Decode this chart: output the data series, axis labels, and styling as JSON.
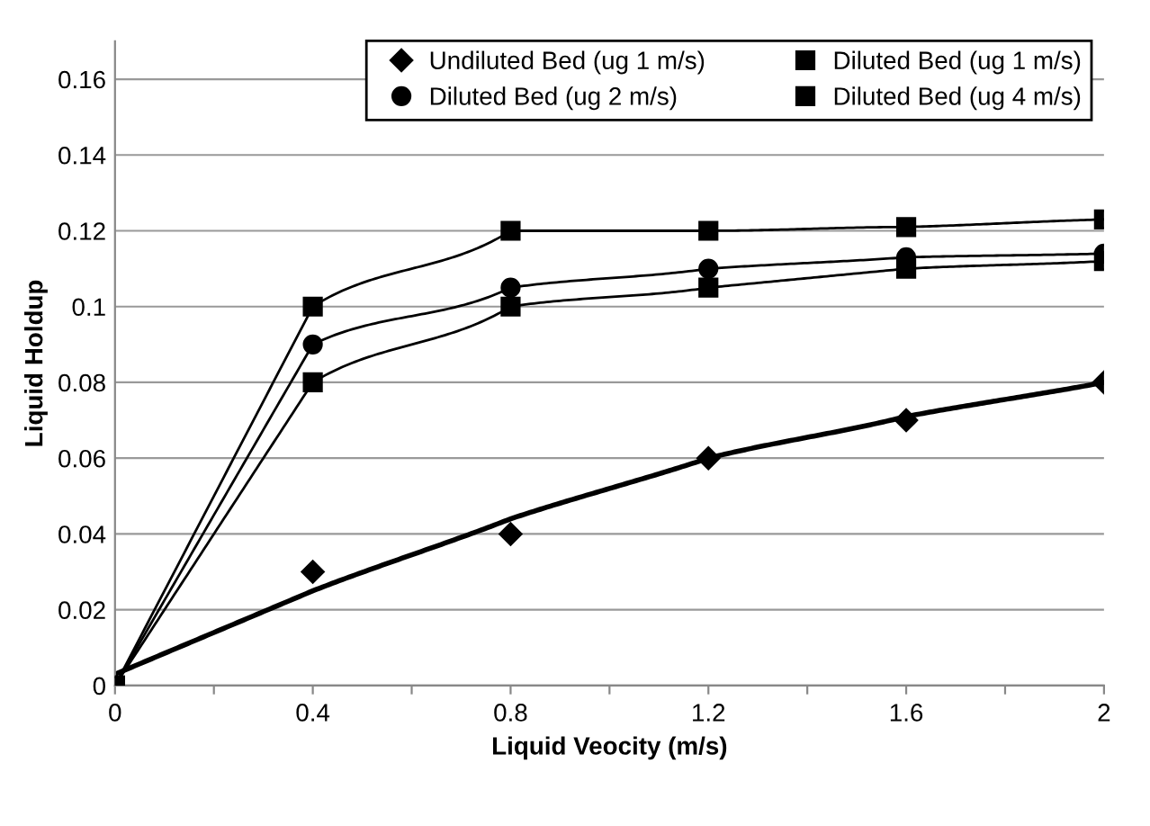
{
  "chart_data": {
    "type": "line",
    "xlabel": "Liquid Veocity (m/s)",
    "ylabel": "Liquid Holdup",
    "x": [
      0,
      0.4,
      0.8,
      1.2,
      1.6,
      2
    ],
    "series": [
      {
        "name": "Undiluted Bed (ug 1 m/s)",
        "type": "scatter",
        "marker": "diamond",
        "color": "#000000",
        "values": [
          null,
          0.03,
          0.04,
          0.06,
          0.07,
          0.08
        ]
      },
      {
        "name": "Diluted Bed (ug 1 m/s)",
        "marker": "square",
        "color": "#000000",
        "values": [
          0,
          0.08,
          0.1,
          0.105,
          0.11,
          0.112
        ]
      },
      {
        "name": "Diluted Bed (ug 2 m/s)",
        "marker": "circle",
        "color": "#000000",
        "values": [
          0,
          0.09,
          0.105,
          0.11,
          0.113,
          0.114
        ]
      },
      {
        "name": "Diluted Bed (ug 4 m/s)",
        "marker": "square",
        "color": "#000000",
        "values": [
          0,
          0.1,
          0.12,
          0.12,
          0.121,
          0.123
        ]
      },
      {
        "type": "line",
        "marker": "none",
        "color": "#000000",
        "x": [
          0,
          0.4,
          0.8,
          1.2,
          1.6,
          2
        ],
        "values": [
          0.003,
          0.025,
          0.044,
          0.06,
          0.071,
          0.08
        ]
      }
    ],
    "xlim": [
      0,
      2
    ],
    "ylim": [
      0,
      0.17
    ],
    "xticks": [
      0,
      {
        "value": 0.2,
        "label": null
      },
      0.4,
      {
        "value": 0.6,
        "label": null
      },
      0.8,
      {
        "value": 1.0,
        "label": null
      },
      1.2,
      {
        "value": 1.4,
        "label": null
      },
      1.6,
      {
        "value": 1.8,
        "label": null
      },
      2
    ],
    "yticks": [
      0,
      0.02,
      0.04,
      0.06,
      0.08,
      0.1,
      0.12,
      0.14,
      0.16
    ],
    "grid": "y",
    "legend": "top"
  }
}
